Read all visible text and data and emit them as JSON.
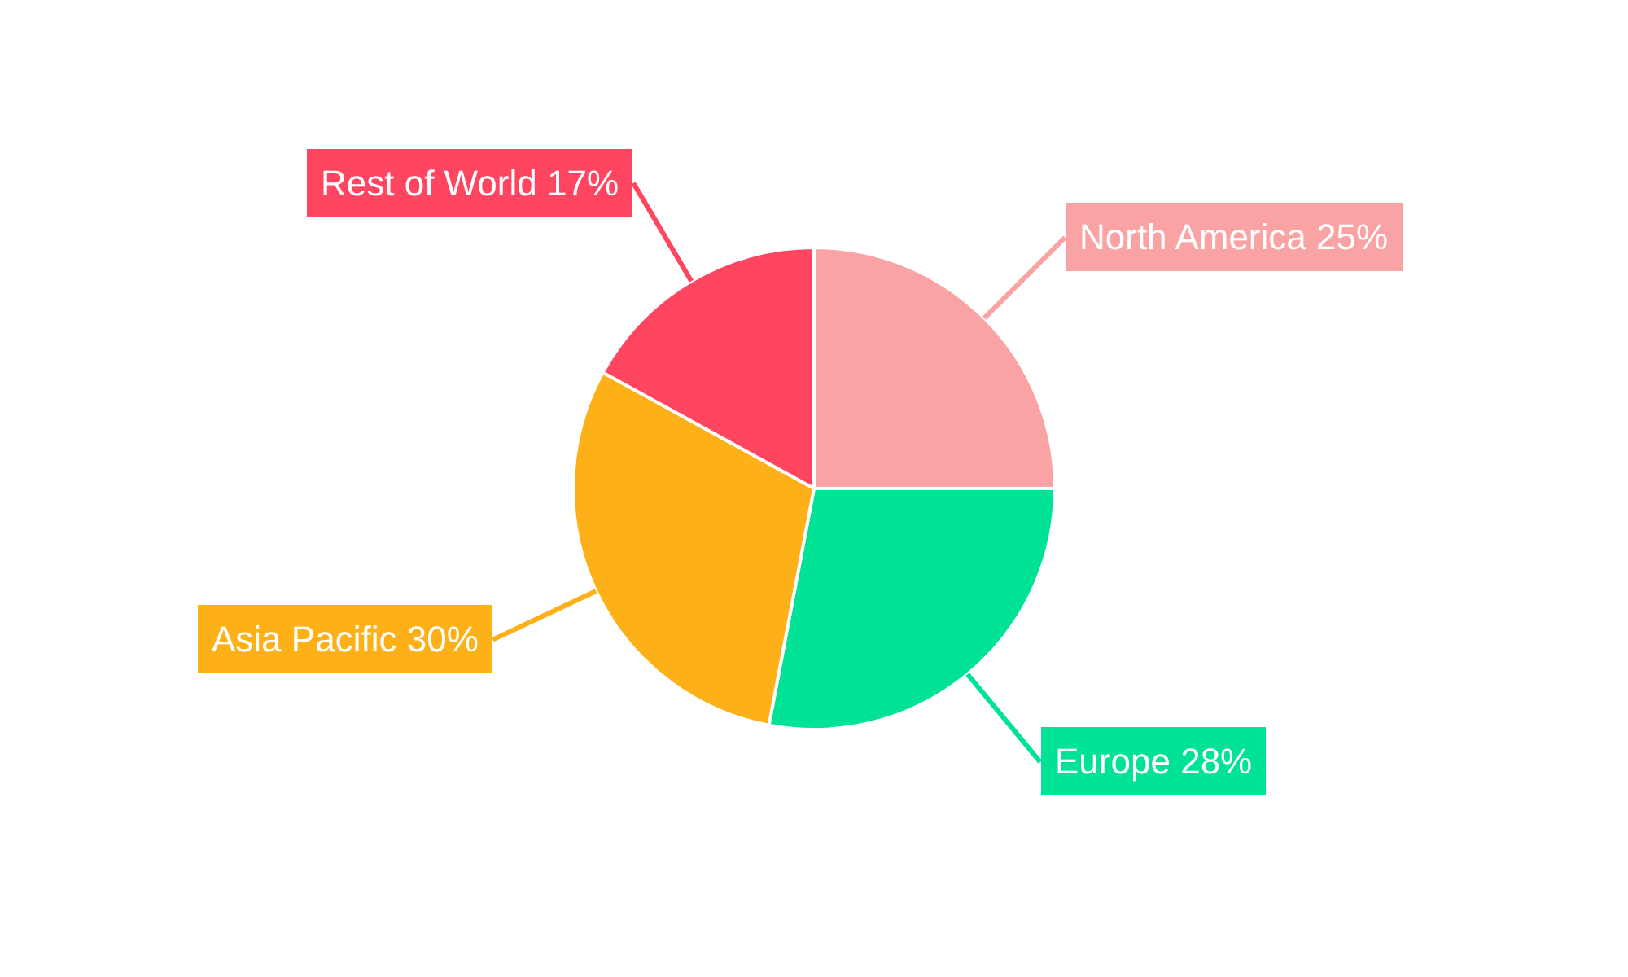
{
  "chart_data": {
    "type": "pie",
    "categories": [
      "North America",
      "Europe",
      "Asia Pacific",
      "Rest of World"
    ],
    "values": [
      25,
      28,
      30,
      17
    ],
    "colors": [
      "#f9a3a4",
      "#00e396",
      "#feb019",
      "#ff4560"
    ],
    "value_labels": [
      "25%",
      "28%",
      "30%",
      "17%"
    ],
    "legend": false
  }
}
